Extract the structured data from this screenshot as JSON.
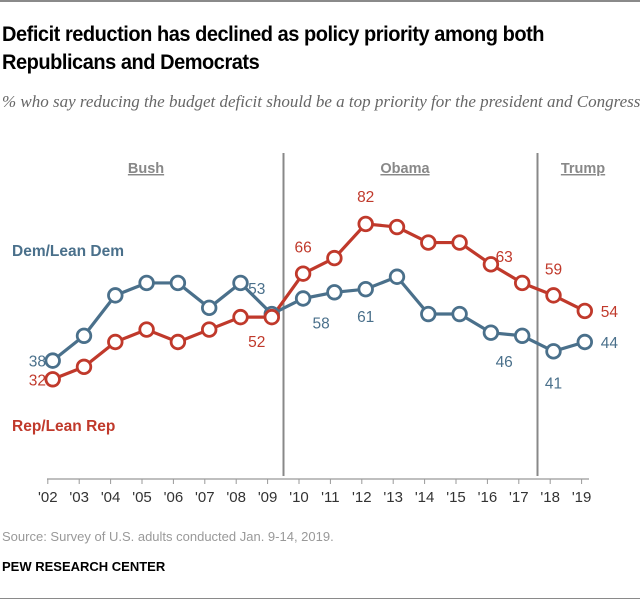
{
  "title": "Deficit reduction has declined as policy priority among both Republicans and Democrats",
  "subtitle": "% who say reducing the budget deficit should be a top priority for the president and Congress",
  "source": "Source: Survey of U.S. adults conducted Jan. 9-14, 2019.",
  "brand": "PEW RESEARCH CENTER",
  "chart_data": {
    "type": "line",
    "categories": [
      "'02",
      "'03",
      "'04",
      "'05",
      "'06",
      "'07",
      "'08",
      "'09",
      "'10",
      "'11",
      "'12",
      "'13",
      "'14",
      "'15",
      "'16",
      "'17",
      "'18",
      "'19"
    ],
    "ylim": [
      0,
      100
    ],
    "grid": false,
    "eras": [
      {
        "label": "Bush",
        "from": "'02",
        "to": "'09"
      },
      {
        "label": "Obama",
        "from": "'10",
        "to": "'17"
      },
      {
        "label": "Trump",
        "from": "'18",
        "to": "'19"
      }
    ],
    "series": [
      {
        "name": "Dem/Lean Dem",
        "color": "#4a708b",
        "values": [
          38,
          46,
          59,
          63,
          63,
          55,
          63,
          53,
          58,
          60,
          61,
          65,
          53,
          53,
          47,
          46,
          41,
          44
        ],
        "labeled": {
          "'02": 38,
          "'09": 53,
          "'10": 58,
          "'12": 61,
          "'17": 46,
          "'18": 41,
          "'19": 44
        }
      },
      {
        "name": "Rep/Lean Rep",
        "color": "#c0392b",
        "values": [
          32,
          36,
          44,
          48,
          44,
          48,
          52,
          52,
          66,
          71,
          82,
          81,
          76,
          76,
          69,
          63,
          59,
          54
        ],
        "labeled": {
          "'02": 32,
          "'09": 52,
          "'10": 66,
          "'12": 82,
          "'17": 63,
          "'18": 59,
          "'19": 54
        }
      }
    ]
  }
}
